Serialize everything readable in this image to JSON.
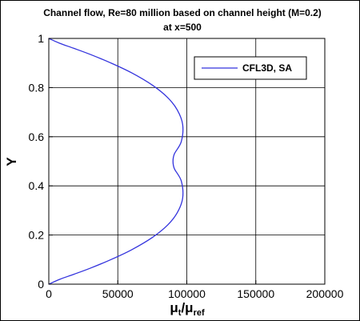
{
  "chart_data": {
    "type": "line",
    "title": "Channel flow, Re=80 million based on channel height (M=0.2)",
    "subtitle": "at x=500",
    "xlabel": {
      "main": "μ",
      "sub1": "t",
      "mid": "/μ",
      "sub2": "ref"
    },
    "ylabel": "Y",
    "xlim": [
      0,
      200000
    ],
    "ylim": [
      0,
      1
    ],
    "xticks": [
      0,
      50000,
      100000,
      150000,
      200000
    ],
    "xtick_labels": [
      "0",
      "50000",
      "100000",
      "150000",
      "200000"
    ],
    "yticks": [
      0,
      0.2,
      0.4,
      0.6,
      0.8,
      1
    ],
    "ytick_labels": [
      "0",
      "0.2",
      "0.4",
      "0.6",
      "0.8",
      "1"
    ],
    "grid": true,
    "legend_position": "top-right",
    "series": [
      {
        "name": "CFL3D, SA",
        "color": "#3333dd",
        "x": [
          0,
          8000,
          18000,
          30000,
          45000,
          60000,
          75000,
          86000,
          93000,
          97000,
          96000,
          91000,
          90000,
          91000,
          96000,
          97000,
          93000,
          86000,
          75000,
          60000,
          45000,
          30000,
          18000,
          8000,
          0
        ],
        "y": [
          0,
          0.02,
          0.04,
          0.065,
          0.1,
          0.14,
          0.19,
          0.24,
          0.29,
          0.35,
          0.42,
          0.47,
          0.5,
          0.53,
          0.58,
          0.65,
          0.71,
          0.76,
          0.81,
          0.86,
          0.9,
          0.935,
          0.96,
          0.98,
          1
        ]
      }
    ]
  }
}
